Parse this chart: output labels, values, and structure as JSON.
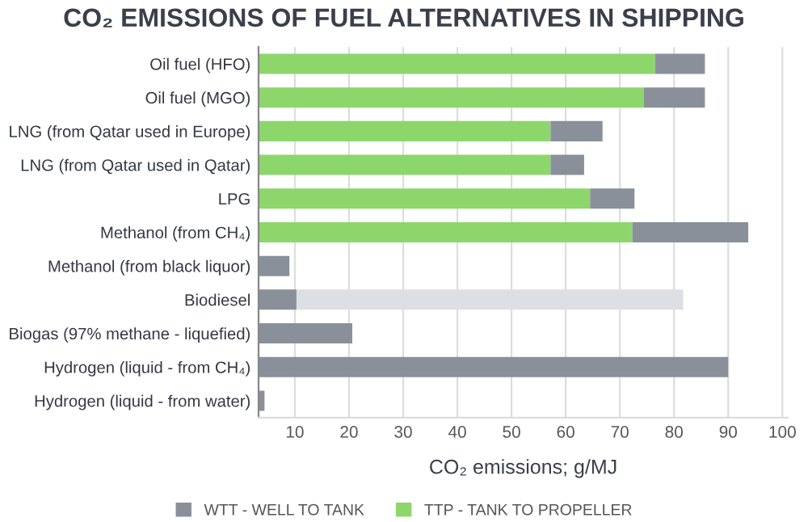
{
  "chart_data": {
    "type": "bar",
    "orientation": "horizontal",
    "stacked": true,
    "title": "CO₂ EMISSIONS OF FUEL ALTERNATIVES IN SHIPPING",
    "xlabel": "CO₂ emissions; g/MJ",
    "categories": [
      "Oil fuel (HFO)",
      "Oil fuel (MGO)",
      "LNG (from Qatar used in Europe)",
      "LNG (from Qatar used in Qatar)",
      "LPG",
      "Methanol (from CH₄)",
      "Methanol (from black liquor)",
      "Biodiesel",
      "Biogas (97% methane - liquefied)",
      "Hydrogen (liquid - from CH₄)",
      "Hydrogen (liquid - from water)"
    ],
    "series": [
      {
        "name": "TTP - TANK TO PROPELLER",
        "color": "#8dd66b",
        "values": [
          76.5,
          74.4,
          57.2,
          57.2,
          64.5,
          72.3,
          null,
          null,
          null,
          null,
          null
        ]
      },
      {
        "name": "WTT - WELL TO TANK",
        "color": "#8a9099",
        "values": [
          9.2,
          11.3,
          9.6,
          6.2,
          8.2,
          21.4,
          9.0,
          10.3,
          20.6,
          90.0,
          4.4
        ]
      },
      {
        "color": "#dcdfe3",
        "values": [
          null,
          null,
          null,
          null,
          null,
          null,
          null,
          71.4,
          null,
          null,
          null
        ]
      }
    ],
    "xlim": [
      3.3,
      101
    ],
    "xticks": [
      10,
      20,
      30,
      40,
      50,
      60,
      70,
      80,
      90,
      100
    ],
    "grid": "x",
    "legend": "bottom"
  }
}
